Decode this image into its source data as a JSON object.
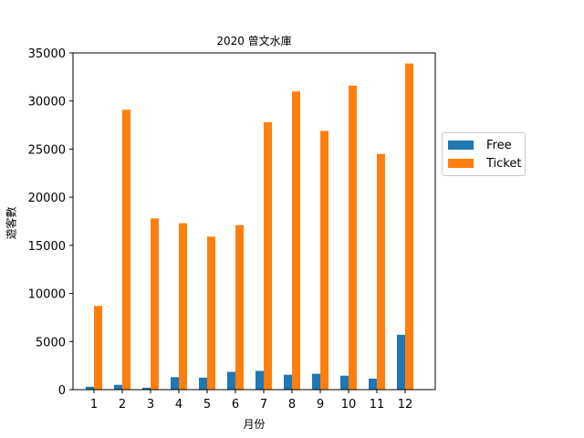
{
  "chart_data": {
    "type": "bar",
    "title": "2020 曾文水庫",
    "xlabel": "月份",
    "ylabel": "遊客數",
    "categories": [
      "1",
      "2",
      "3",
      "4",
      "5",
      "6",
      "7",
      "8",
      "9",
      "10",
      "11",
      "12"
    ],
    "series": [
      {
        "name": "Free",
        "color": "#1f77b4",
        "values": [
          300,
          500,
          200,
          1300,
          1250,
          1850,
          1950,
          1550,
          1650,
          1450,
          1150,
          5700
        ]
      },
      {
        "name": "Ticket",
        "color": "#ff7f0e",
        "values": [
          8700,
          29100,
          17800,
          17300,
          15900,
          17100,
          27800,
          31000,
          26900,
          31600,
          24500,
          33900
        ]
      }
    ],
    "ylim": [
      0,
      35000
    ],
    "yticks": [
      0,
      5000,
      10000,
      15000,
      20000,
      25000,
      30000,
      35000
    ],
    "grid": false,
    "legend_position": "right"
  }
}
